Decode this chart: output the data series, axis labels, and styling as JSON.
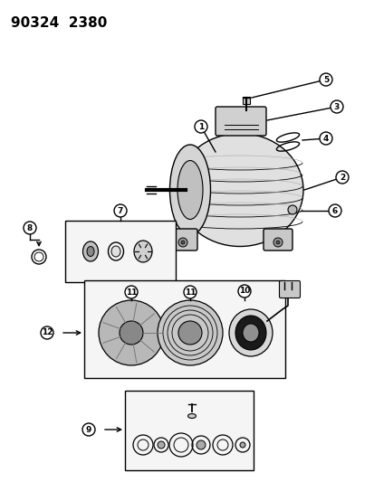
{
  "title": "90324  2380",
  "bg_color": "#ffffff",
  "fg_color": "#000000",
  "fig_width": 4.14,
  "fig_height": 5.33,
  "dpi": 100
}
